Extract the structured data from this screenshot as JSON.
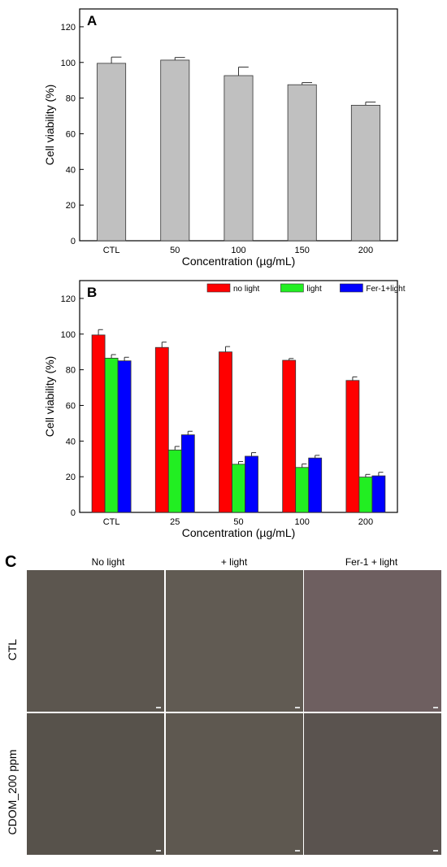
{
  "chart_data": [
    {
      "panel_label": "A",
      "type": "bar",
      "categories": [
        "CTL",
        "50",
        "100",
        "150",
        "200"
      ],
      "values": [
        99.5,
        101.3,
        92.6,
        87.5,
        76.0
      ],
      "errors": [
        3.5,
        1.5,
        4.8,
        1.2,
        1.8
      ],
      "xlabel": "Concentration (µg/mL)",
      "ylabel": "Cell viability (%)",
      "ylim": [
        0,
        130
      ],
      "yticks": [
        0,
        20,
        40,
        60,
        80,
        100,
        120
      ],
      "bar_color": "#c0c0c0"
    },
    {
      "panel_label": "B",
      "type": "bar",
      "categories": [
        "CTL",
        "25",
        "50",
        "100",
        "200"
      ],
      "series": [
        {
          "name": "no light",
          "color": "#ff0000",
          "values": [
            99.5,
            92.5,
            90.0,
            85.3,
            74.0
          ],
          "errors": [
            3.0,
            3.0,
            3.0,
            1.0,
            2.0
          ]
        },
        {
          "name": "light",
          "color": "#22ee22",
          "values": [
            86.5,
            35.0,
            27.0,
            25.2,
            19.8
          ],
          "errors": [
            2.0,
            2.0,
            1.5,
            2.0,
            1.5
          ]
        },
        {
          "name": "Fer-1+light",
          "color": "#0000ff",
          "values": [
            85.0,
            43.5,
            31.5,
            30.5,
            20.5
          ],
          "errors": [
            2.0,
            2.0,
            2.0,
            1.5,
            2.0
          ]
        }
      ],
      "xlabel": "Concentration (µg/mL)",
      "ylabel": "Cell viability (%)",
      "ylim": [
        0,
        130
      ],
      "yticks": [
        0,
        20,
        40,
        60,
        80,
        100,
        120
      ],
      "legend": "top-right"
    }
  ],
  "panel_c": {
    "label": "C",
    "columns": [
      "No light",
      "+ light",
      "Fer-1 + light"
    ],
    "rows": [
      "CTL",
      "CDOM_200 ppm"
    ]
  }
}
